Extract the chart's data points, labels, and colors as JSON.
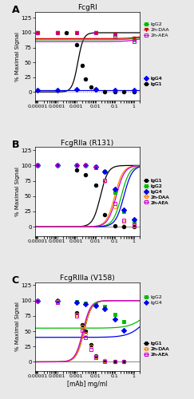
{
  "panels": [
    {
      "label": "A",
      "title": "FcgRI",
      "ylim": [
        -15,
        135
      ],
      "yticks": [
        0,
        25,
        50,
        75,
        100,
        125
      ],
      "hline_style": "dotted",
      "series": [
        {
          "name": "IgG1",
          "color": "#000000",
          "marker": "o",
          "fillstyle": "full",
          "x": [
            1e-05,
            0.0001,
            0.0003,
            0.001,
            0.002,
            0.003,
            0.006,
            0.01,
            0.03,
            0.1,
            0.3,
            1.0
          ],
          "y": [
            100,
            100,
            100,
            80,
            45,
            22,
            8,
            4,
            1,
            0,
            0,
            0
          ],
          "curve_bottom": 0,
          "curve_top": 100,
          "curve_ec50": 0.0012,
          "curve_hill": 3.0
        },
        {
          "name": "IgG2",
          "color": "#00bb00",
          "marker": "s",
          "fillstyle": "full",
          "x": [
            1e-05,
            0.0001,
            0.001,
            0.01,
            0.1,
            1.0
          ],
          "y": [
            100,
            100,
            100,
            100,
            97,
            88
          ],
          "curve_bottom": 88,
          "curve_top": 100,
          "curve_ec50": 5.0,
          "curve_hill": 1.0
        },
        {
          "name": "IgG4",
          "color": "#0000ee",
          "marker": "D",
          "fillstyle": "full",
          "x": [
            1e-05,
            0.0001,
            0.001,
            0.01,
            0.1,
            1.0
          ],
          "y": [
            3,
            3,
            4,
            4,
            3,
            3
          ],
          "curve_bottom": 3,
          "curve_top": 3,
          "curve_ec50": 100,
          "curve_hill": 1.0
        },
        {
          "name": "2h-DAA",
          "color": "#dd0000",
          "marker": "v",
          "fillstyle": "full",
          "x": [
            1e-05,
            0.0001,
            0.001,
            0.01,
            0.1,
            1.0
          ],
          "y": [
            100,
            100,
            100,
            100,
            97,
            90
          ],
          "curve_bottom": 90,
          "curve_top": 100,
          "curve_ec50": 5.0,
          "curve_hill": 1.0
        },
        {
          "name": "2h-AEA",
          "color": "#cc00cc",
          "marker": "s",
          "fillstyle": "none",
          "x": [
            1e-05,
            0.0001,
            0.001,
            0.01,
            0.1,
            1.0
          ],
          "y": [
            100,
            100,
            100,
            100,
            95,
            85
          ],
          "curve_bottom": 85,
          "curve_top": 100,
          "curve_ec50": 5.0,
          "curve_hill": 1.0
        }
      ],
      "legend_groups": [
        {
          "indices": [
            1,
            3,
            4
          ],
          "anchor_y": 0.8
        },
        {
          "indices": [
            2,
            0
          ],
          "anchor_y": 0.22
        }
      ]
    },
    {
      "label": "B",
      "title": "FcgRIIa (R131)",
      "ylim": [
        -15,
        130
      ],
      "yticks": [
        0,
        25,
        50,
        75,
        100,
        125
      ],
      "hline_style": "solid",
      "series": [
        {
          "name": "IgG1",
          "color": "#000000",
          "marker": "o",
          "fillstyle": "full",
          "x": [
            1e-05,
            0.0001,
            0.001,
            0.003,
            0.01,
            0.03,
            0.1,
            0.3,
            1.0
          ],
          "y": [
            100,
            100,
            93,
            85,
            68,
            20,
            2,
            0,
            0
          ],
          "curve_bottom": 0,
          "curve_top": 100,
          "curve_ec50": 0.018,
          "curve_hill": 2.2
        },
        {
          "name": "IgG2",
          "color": "#00bb00",
          "marker": "s",
          "fillstyle": "full",
          "x": [
            1e-05,
            0.0001,
            0.001,
            0.003,
            0.01,
            0.03,
            0.1,
            0.3,
            1.0
          ],
          "y": [
            100,
            100,
            100,
            100,
            98,
            90,
            56,
            25,
            8
          ],
          "curve_bottom": 0,
          "curve_top": 100,
          "curve_ec50": 0.22,
          "curve_hill": 2.0
        },
        {
          "name": "IgG4",
          "color": "#0000ee",
          "marker": "D",
          "fillstyle": "full",
          "x": [
            1e-05,
            0.0001,
            0.001,
            0.003,
            0.01,
            0.03,
            0.1,
            0.3,
            1.0
          ],
          "y": [
            100,
            100,
            100,
            100,
            98,
            90,
            62,
            28,
            12
          ],
          "curve_bottom": 0,
          "curve_top": 100,
          "curve_ec50": 0.3,
          "curve_hill": 2.0
        },
        {
          "name": "2h-DAA",
          "color": "#ff8800",
          "marker": "o",
          "fillstyle": "none",
          "x": [
            1e-05,
            0.0001,
            0.001,
            0.003,
            0.01,
            0.03,
            0.1,
            0.3,
            1.0
          ],
          "y": [
            100,
            100,
            100,
            100,
            96,
            74,
            33,
            8,
            2
          ],
          "curve_bottom": 0,
          "curve_top": 100,
          "curve_ec50": 0.1,
          "curve_hill": 2.0
        },
        {
          "name": "2h-AEA",
          "color": "#cc00cc",
          "marker": "s",
          "fillstyle": "none",
          "x": [
            1e-05,
            0.0001,
            0.001,
            0.003,
            0.01,
            0.03,
            0.1,
            0.3,
            1.0
          ],
          "y": [
            100,
            100,
            100,
            100,
            97,
            76,
            38,
            10,
            3
          ],
          "curve_bottom": 0,
          "curve_top": 100,
          "curve_ec50": 0.12,
          "curve_hill": 2.0
        }
      ],
      "legend_groups": [
        {
          "indices": [
            0,
            1,
            2,
            3,
            4
          ],
          "anchor_y": 0.5
        }
      ]
    },
    {
      "label": "C",
      "title": "FcgRIIIa (V158)",
      "ylim": [
        -15,
        130
      ],
      "yticks": [
        0,
        25,
        50,
        75,
        100,
        125
      ],
      "hline_style": "solid",
      "series": [
        {
          "name": "IgG1",
          "color": "#000000",
          "marker": "o",
          "fillstyle": "full",
          "x": [
            1e-05,
            0.0001,
            0.001,
            0.002,
            0.003,
            0.006,
            0.01,
            0.03,
            0.1,
            0.3
          ],
          "y": [
            100,
            98,
            80,
            60,
            50,
            28,
            10,
            2,
            0,
            0
          ],
          "curve_bottom": 0,
          "curve_top": 100,
          "curve_ec50": 0.0025,
          "curve_hill": 2.2
        },
        {
          "name": "IgG2",
          "color": "#00bb00",
          "marker": "s",
          "fillstyle": "full",
          "x": [
            1e-05,
            0.0001,
            0.001,
            0.003,
            0.01,
            0.03,
            0.1,
            0.3
          ],
          "y": [
            100,
            99,
            98,
            96,
            94,
            91,
            78,
            66
          ],
          "curve_bottom": 55,
          "curve_top": 100,
          "curve_ec50": 5.0,
          "curve_hill": 1.0
        },
        {
          "name": "IgG4",
          "color": "#0000ee",
          "marker": "D",
          "fillstyle": "full",
          "x": [
            1e-05,
            0.0001,
            0.001,
            0.003,
            0.01,
            0.03,
            0.1,
            0.3
          ],
          "y": [
            100,
            99,
            97,
            95,
            92,
            86,
            70,
            52
          ],
          "curve_bottom": 40,
          "curve_top": 100,
          "curve_ec50": 5.0,
          "curve_hill": 1.0
        },
        {
          "name": "2h-DAA",
          "color": "#ff8800",
          "marker": "o",
          "fillstyle": "none",
          "x": [
            1e-05,
            0.0001,
            0.001,
            0.002,
            0.003,
            0.006,
            0.01,
            0.03,
            0.1,
            0.3
          ],
          "y": [
            100,
            98,
            78,
            58,
            46,
            25,
            9,
            2,
            0,
            0
          ],
          "curve_bottom": 0,
          "curve_top": 100,
          "curve_ec50": 0.0025,
          "curve_hill": 2.2
        },
        {
          "name": "2h-AEA",
          "color": "#cc00cc",
          "marker": "s",
          "fillstyle": "none",
          "x": [
            1e-05,
            0.0001,
            0.001,
            0.002,
            0.003,
            0.006,
            0.01,
            0.03,
            0.1,
            0.3
          ],
          "y": [
            100,
            97,
            75,
            52,
            40,
            20,
            7,
            1,
            0,
            0
          ],
          "curve_bottom": 0,
          "curve_top": 100,
          "curve_ec50": 0.0022,
          "curve_hill": 2.2
        }
      ],
      "legend_groups": [
        {
          "indices": [
            1,
            2
          ],
          "anchor_y": 0.8
        },
        {
          "indices": [
            0,
            3,
            4
          ],
          "anchor_y": 0.25
        }
      ]
    }
  ],
  "xlabel": "[mAb] mg/ml",
  "ylabel": "% Maximal Signal",
  "background_color": "#e8e8e8",
  "panel_bg": "#ffffff",
  "xmin": 7e-06,
  "xmax": 2.0,
  "xtick_labels": [
    "0.00001",
    "0.0001",
    "0.001",
    "0.01",
    "0.1",
    "1"
  ],
  "xtick_vals": [
    1e-05,
    0.0001,
    0.001,
    0.01,
    0.1,
    1.0
  ]
}
